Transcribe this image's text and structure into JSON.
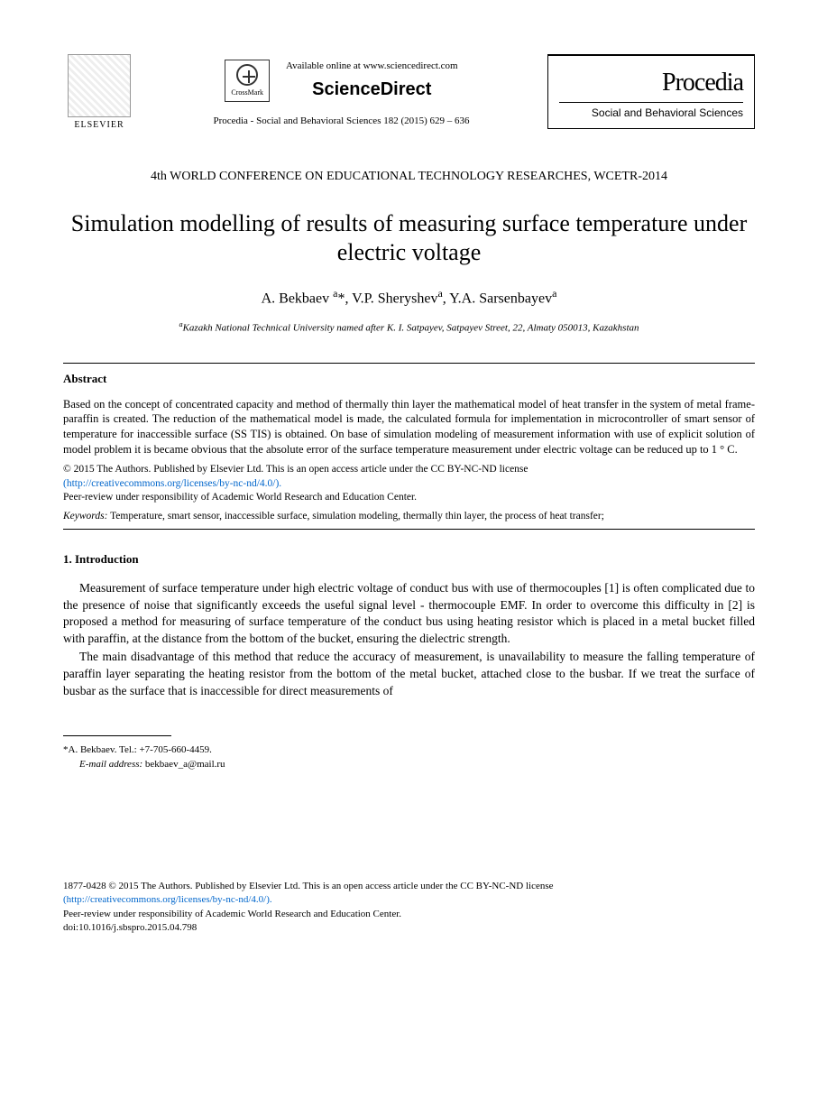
{
  "header": {
    "elsevier_label": "ELSEVIER",
    "crossmark_label": "CrossMark",
    "available_text": "Available online at www.sciencedirect.com",
    "sciencedirect_label": "ScienceDirect",
    "citation": "Procedia - Social and Behavioral Sciences 182 (2015) 629 – 636",
    "procedia_title": "Procedia",
    "procedia_subtitle": "Social and Behavioral Sciences"
  },
  "conference": "4th WORLD CONFERENCE ON EDUCATIONAL TECHNOLOGY RESEARCHES, WCETR-2014",
  "title": "Simulation modelling of results of measuring surface temperature under electric voltage",
  "authors_html": "A. Bekbaev <sup>a</sup>*, V.P. Sheryshev<sup>a</sup>, Y.A. Sarsenbayev<sup>a</sup>",
  "affiliation_html": "<sup>a</sup>Kazakh National Technical University named after K. I. Satpayev, Satpayev Street, 22, Almaty 050013, Kazakhstan",
  "abstract": {
    "heading": "Abstract",
    "text": "Based on the concept of concentrated capacity and method of thermally thin layer the mathematical model of heat transfer in the system of metal frame-paraffin is created. The reduction of the mathematical model is made, the calculated formula for implementation in microcontroller of smart sensor of temperature for inaccessible surface (SS TIS) is obtained. On base of simulation modeling of measurement information with use of explicit solution of model problem it is became obvious that the absolute error of the surface temperature measurement under electric voltage can be reduced up to 1 ° C."
  },
  "copyright": {
    "line1": "© 2015 The Authors. Published by Elsevier Ltd. This is an open access article under the CC BY-NC-ND license",
    "license_url": "(http://creativecommons.org/licenses/by-nc-nd/4.0/).",
    "peer_review": "Peer-review under responsibility of Academic World Research and Education Center."
  },
  "keywords": {
    "label": "Keywords:",
    "text": " Temperature, smart sensor, inaccessible surface, simulation modeling, thermally thin layer, the process of heat transfer;"
  },
  "introduction": {
    "heading": "1. Introduction",
    "para1": "Measurement of surface temperature under high electric voltage of conduct bus with use of thermocouples [1] is often complicated due to the presence of noise that significantly exceeds the useful signal level - thermocouple EMF. In order to overcome this difficulty in [2] is proposed a method for measuring of surface temperature of the conduct bus using heating resistor which is placed in a metal bucket filled with paraffin, at the distance from the bottom of the bucket, ensuring the dielectric strength.",
    "para2": "The main disadvantage of this method that reduce the accuracy of measurement, is unavailability to measure the falling temperature of paraffin layer separating the heating resistor from the bottom of the metal bucket, attached close to the busbar. If we treat the surface of busbar as the surface that is inaccessible for direct measurements of"
  },
  "footnote": {
    "contact": "*A. Bekbaev. Tel.: +7-705-660-4459.",
    "email_label": "E-mail address:",
    "email": " bekbaev_a@mail.ru"
  },
  "footer": {
    "line1": "1877-0428 © 2015 The Authors. Published by Elsevier Ltd. This is an open access article under the CC BY-NC-ND license",
    "license_url": "(http://creativecommons.org/licenses/by-nc-nd/4.0/).",
    "peer_review": "Peer-review under responsibility of Academic World Research and Education Center.",
    "doi": "doi:10.1016/j.sbspro.2015.04.798"
  },
  "colors": {
    "text": "#000000",
    "link": "#0066cc",
    "background": "#ffffff",
    "rule": "#000000"
  },
  "typography": {
    "body_family": "Times New Roman",
    "title_size_pt": 20,
    "body_size_pt": 10,
    "abstract_size_pt": 9.5,
    "footnote_size_pt": 8
  }
}
